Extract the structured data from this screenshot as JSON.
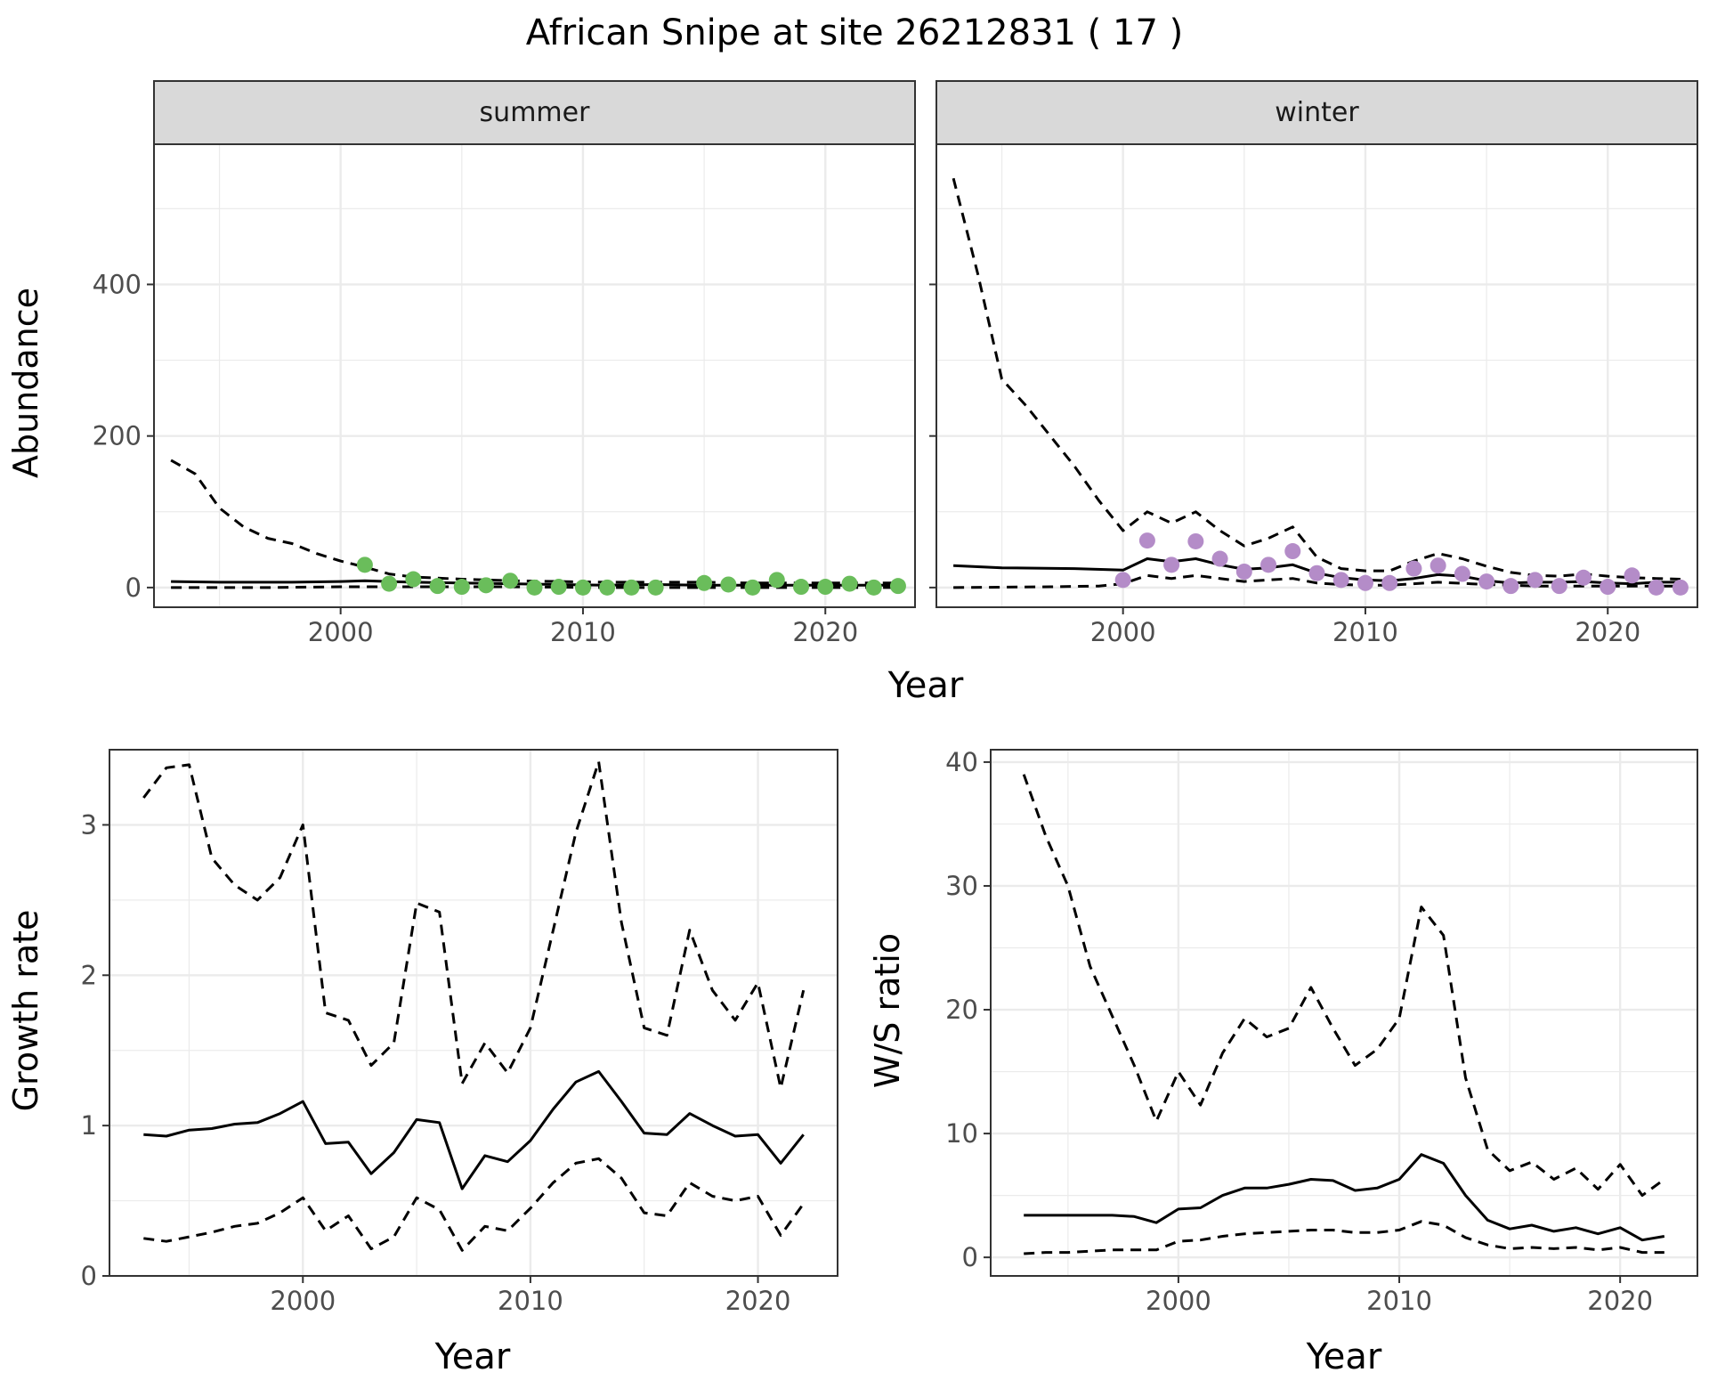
{
  "title": "African Snipe at site 26212831 ( 17 )",
  "colors": {
    "summer_points": "#6abd5b",
    "winter_points": "#b48cc8",
    "strip_bg": "#d9d9d9",
    "line": "#000000",
    "grid": "#ebebeb"
  },
  "chart_data": [
    {
      "type": "line",
      "facet": "summer",
      "strip_label": "summer",
      "xlabel": "Year",
      "ylabel": "Abundance",
      "xlim": [
        1992.3,
        2023.7
      ],
      "ylim": [
        -26,
        585
      ],
      "x_ticks": [
        2000,
        2010,
        2020
      ],
      "y_ticks": [
        0,
        200,
        400
      ],
      "grid": true,
      "series": [
        {
          "role": "estimate",
          "style": "solid",
          "x": [
            1993,
            1995,
            1998,
            2000,
            2001,
            2002,
            2003,
            2005,
            2007,
            2009,
            2011,
            2013,
            2015,
            2017,
            2019,
            2021,
            2023
          ],
          "y": [
            8,
            7,
            7,
            8,
            9,
            8,
            7,
            6,
            5,
            4,
            3,
            4,
            3,
            3,
            3,
            3,
            3
          ]
        },
        {
          "role": "upper",
          "style": "dashed",
          "x": [
            1993,
            1994,
            1995,
            1996,
            1997,
            1998,
            1999,
            2000,
            2001,
            2002,
            2003,
            2005,
            2007,
            2009,
            2011,
            2013,
            2015,
            2017,
            2019,
            2021,
            2023
          ],
          "y": [
            168,
            150,
            105,
            80,
            65,
            58,
            45,
            35,
            27,
            18,
            14,
            11,
            9,
            8,
            7,
            7,
            7,
            6,
            6,
            6,
            6
          ]
        },
        {
          "role": "lower",
          "style": "dashed",
          "x": [
            1993,
            1997,
            2000,
            2001,
            2003,
            2007,
            2011,
            2015,
            2019,
            2023
          ],
          "y": [
            0,
            0,
            1,
            1,
            1,
            1,
            0,
            0,
            0,
            0
          ]
        },
        {
          "role": "observed",
          "style": "points",
          "x": [
            2001,
            2002,
            2003,
            2004,
            2005,
            2006,
            2007,
            2008,
            2009,
            2010,
            2011,
            2012,
            2013,
            2015,
            2016,
            2017,
            2018,
            2019,
            2020,
            2021,
            2022,
            2023
          ],
          "y": [
            30,
            5,
            11,
            2,
            1,
            3,
            9,
            0,
            1,
            0,
            0,
            0,
            0,
            6,
            4,
            0,
            10,
            1,
            1,
            5,
            0,
            2
          ]
        }
      ]
    },
    {
      "type": "line",
      "facet": "winter",
      "strip_label": "winter",
      "xlabel": "Year",
      "ylabel": "Abundance",
      "xlim": [
        1992.3,
        2023.7
      ],
      "ylim": [
        -26,
        585
      ],
      "x_ticks": [
        2000,
        2010,
        2020
      ],
      "y_ticks": [
        0,
        200,
        400
      ],
      "grid": true,
      "series": [
        {
          "role": "estimate",
          "style": "solid",
          "x": [
            1993,
            1995,
            1998,
            2000,
            2001,
            2002,
            2003,
            2004,
            2005,
            2006,
            2007,
            2008,
            2009,
            2010,
            2011,
            2012,
            2013,
            2014,
            2015,
            2016,
            2017,
            2018,
            2019,
            2020,
            2021,
            2022,
            2023
          ],
          "y": [
            29,
            26,
            25,
            23,
            38,
            34,
            38,
            30,
            24,
            26,
            30,
            19,
            13,
            10,
            9,
            12,
            17,
            15,
            9,
            6,
            7,
            7,
            8,
            6,
            5,
            7,
            7
          ]
        },
        {
          "role": "upper",
          "style": "dashed",
          "x": [
            1993,
            1994,
            1995,
            1996,
            1997,
            1998,
            1999,
            2000,
            2001,
            2002,
            2003,
            2004,
            2005,
            2006,
            2007,
            2008,
            2009,
            2010,
            2011,
            2012,
            2013,
            2014,
            2015,
            2016,
            2017,
            2018,
            2019,
            2020,
            2021,
            2022,
            2023
          ],
          "y": [
            540,
            415,
            275,
            240,
            200,
            160,
            115,
            75,
            100,
            85,
            100,
            75,
            55,
            65,
            80,
            40,
            25,
            22,
            22,
            35,
            45,
            38,
            28,
            20,
            16,
            15,
            18,
            15,
            13,
            12,
            11
          ]
        },
        {
          "role": "lower",
          "style": "dashed",
          "x": [
            1993,
            1997,
            1999,
            2000,
            2001,
            2002,
            2003,
            2004,
            2005,
            2006,
            2007,
            2008,
            2009,
            2010,
            2011,
            2012,
            2013,
            2015,
            2017,
            2019,
            2021,
            2023
          ],
          "y": [
            0,
            1,
            2,
            5,
            16,
            12,
            16,
            12,
            8,
            10,
            12,
            6,
            4,
            3,
            3,
            5,
            7,
            4,
            2,
            2,
            2,
            2
          ]
        },
        {
          "role": "observed",
          "style": "points",
          "x": [
            2000,
            2001,
            2002,
            2003,
            2004,
            2005,
            2006,
            2007,
            2008,
            2009,
            2010,
            2011,
            2012,
            2013,
            2014,
            2015,
            2016,
            2017,
            2018,
            2019,
            2020,
            2021,
            2022,
            2023
          ],
          "y": [
            10,
            62,
            30,
            61,
            38,
            21,
            30,
            48,
            19,
            10,
            6,
            6,
            25,
            29,
            18,
            8,
            2,
            10,
            2,
            13,
            1,
            16,
            0,
            0
          ]
        }
      ]
    },
    {
      "type": "line",
      "facet": "growth",
      "xlabel": "Year",
      "ylabel": "Growth rate",
      "xlim": [
        1991.5,
        2023.5
      ],
      "ylim": [
        0,
        3.5
      ],
      "x_ticks": [
        2000,
        2010,
        2020
      ],
      "y_ticks": [
        0,
        1,
        2,
        3
      ],
      "grid": true,
      "series": [
        {
          "role": "estimate",
          "style": "solid",
          "x": [
            1993,
            1994,
            1995,
            1996,
            1997,
            1998,
            1999,
            2000,
            2001,
            2002,
            2003,
            2004,
            2005,
            2006,
            2007,
            2008,
            2009,
            2010,
            2011,
            2012,
            2013,
            2014,
            2015,
            2016,
            2017,
            2018,
            2019,
            2020,
            2021,
            2022
          ],
          "y": [
            0.94,
            0.93,
            0.97,
            0.98,
            1.01,
            1.02,
            1.08,
            1.16,
            0.88,
            0.89,
            0.68,
            0.82,
            1.04,
            1.02,
            0.58,
            0.8,
            0.76,
            0.9,
            1.11,
            1.29,
            1.36,
            1.16,
            0.95,
            0.94,
            1.08,
            1.0,
            0.93,
            0.94,
            0.75,
            0.94
          ]
        },
        {
          "role": "upper",
          "style": "dashed",
          "x": [
            1993,
            1994,
            1995,
            1996,
            1997,
            1998,
            1999,
            2000,
            2001,
            2002,
            2003,
            2004,
            2005,
            2006,
            2007,
            2008,
            2009,
            2010,
            2011,
            2012,
            2013,
            2014,
            2015,
            2016,
            2017,
            2018,
            2019,
            2020,
            2021,
            2022
          ],
          "y": [
            3.18,
            3.38,
            3.4,
            2.78,
            2.6,
            2.5,
            2.65,
            3.0,
            1.75,
            1.7,
            1.4,
            1.55,
            2.48,
            2.42,
            1.28,
            1.55,
            1.35,
            1.65,
            2.3,
            2.95,
            3.42,
            2.35,
            1.65,
            1.6,
            2.3,
            1.9,
            1.7,
            1.95,
            1.25,
            1.9
          ]
        },
        {
          "role": "lower",
          "style": "dashed",
          "x": [
            1993,
            1994,
            1995,
            1996,
            1997,
            1998,
            1999,
            2000,
            2001,
            2002,
            2003,
            2004,
            2005,
            2006,
            2007,
            2008,
            2009,
            2010,
            2011,
            2012,
            2013,
            2014,
            2015,
            2016,
            2017,
            2018,
            2019,
            2020,
            2021,
            2022
          ],
          "y": [
            0.25,
            0.23,
            0.26,
            0.29,
            0.33,
            0.35,
            0.42,
            0.52,
            0.3,
            0.4,
            0.18,
            0.26,
            0.52,
            0.44,
            0.17,
            0.33,
            0.3,
            0.45,
            0.62,
            0.75,
            0.78,
            0.65,
            0.42,
            0.4,
            0.62,
            0.53,
            0.5,
            0.53,
            0.27,
            0.48
          ]
        }
      ]
    },
    {
      "type": "line",
      "facet": "ratio",
      "xlabel": "Year",
      "ylabel": "W/S ratio",
      "xlim": [
        1991.5,
        2023.5
      ],
      "ylim": [
        -1.5,
        41
      ],
      "x_ticks": [
        2000,
        2010,
        2020
      ],
      "y_ticks": [
        0,
        10,
        20,
        30,
        40
      ],
      "grid": true,
      "series": [
        {
          "role": "estimate",
          "style": "solid",
          "x": [
            1993,
            1994,
            1995,
            1996,
            1997,
            1998,
            1999,
            2000,
            2001,
            2002,
            2003,
            2004,
            2005,
            2006,
            2007,
            2008,
            2009,
            2010,
            2011,
            2012,
            2013,
            2014,
            2015,
            2016,
            2017,
            2018,
            2019,
            2020,
            2021,
            2022
          ],
          "y": [
            3.4,
            3.4,
            3.4,
            3.4,
            3.4,
            3.3,
            2.8,
            3.9,
            4.0,
            5.0,
            5.6,
            5.6,
            5.9,
            6.3,
            6.2,
            5.4,
            5.6,
            6.3,
            8.3,
            7.6,
            5.0,
            3.0,
            2.3,
            2.6,
            2.1,
            2.4,
            1.9,
            2.4,
            1.4,
            1.7
          ]
        },
        {
          "role": "upper",
          "style": "dashed",
          "x": [
            1993,
            1994,
            1995,
            1996,
            1997,
            1998,
            1999,
            2000,
            2001,
            2002,
            2003,
            2004,
            2005,
            2006,
            2007,
            2008,
            2009,
            2010,
            2011,
            2012,
            2013,
            2014,
            2015,
            2016,
            2017,
            2018,
            2019,
            2020,
            2021,
            2022
          ],
          "y": [
            39,
            34,
            30,
            23.5,
            19.5,
            15.5,
            11,
            15,
            12.3,
            16.5,
            19.3,
            17.8,
            18.5,
            21.8,
            18.5,
            15.5,
            16.8,
            19.3,
            28.3,
            26,
            14.5,
            8.7,
            7.0,
            7.7,
            6.3,
            7.2,
            5.5,
            7.5,
            5.0,
            6.3
          ]
        },
        {
          "role": "lower",
          "style": "dashed",
          "x": [
            1993,
            1994,
            1995,
            1996,
            1997,
            1998,
            1999,
            2000,
            2001,
            2002,
            2003,
            2004,
            2005,
            2006,
            2007,
            2008,
            2009,
            2010,
            2011,
            2012,
            2013,
            2014,
            2015,
            2016,
            2017,
            2018,
            2019,
            2020,
            2021,
            2022
          ],
          "y": [
            0.3,
            0.4,
            0.4,
            0.5,
            0.6,
            0.6,
            0.6,
            1.3,
            1.4,
            1.7,
            1.9,
            2.0,
            2.1,
            2.2,
            2.2,
            2.0,
            2.0,
            2.2,
            2.9,
            2.6,
            1.6,
            1.0,
            0.7,
            0.8,
            0.7,
            0.8,
            0.6,
            0.8,
            0.4,
            0.4
          ]
        }
      ]
    }
  ]
}
